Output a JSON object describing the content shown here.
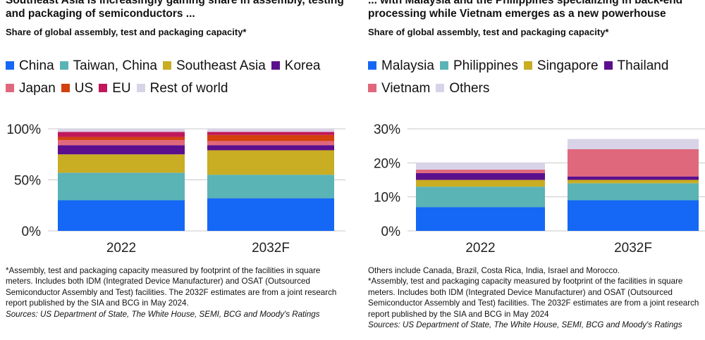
{
  "panels": [
    {
      "title_lines": [
        "Southeast Asia is increasingly gaining share in assembly, testing",
        "and packaging of semiconductors ..."
      ],
      "subtitle": "Share of global assembly, test and packaging capacity*",
      "notes": [
        "*Assembly, test and packaging capacity measured by footprint of the facilities in square meters. Includes both IDM (Integrated Device Manufacturer) and OSAT (Outsourced Semiconductor Assembly and Test) facilities. The 2032F estimates are from a joint research report published by the SIA and BCG in May 2024."
      ],
      "sources": "Sources: US Department of State, The White House, SEMI, BCG and Moody's Ratings"
    },
    {
      "title_lines": [
        "... with Malaysia and the Philippines specializing in back-end",
        "processing while Vietnam emerges as a new powerhouse"
      ],
      "subtitle": "Share of global assembly, test and packaging capacity*",
      "notes": [
        "Others include Canada, Brazil, Costa Rica, India, Israel and Morocco.",
        "*Assembly, test and packaging capacity measured by footprint of the facilities in square meters. Includes both IDM (Integrated Device Manufacturer) and OSAT (Outsourced Semiconductor Assembly and Test) facilities. The 2032F estimates are from a joint research report published by the SIA and BCG in May 2024"
      ],
      "sources": "Sources: US Department of State, The White House, SEMI, BCG and Moody's Ratings"
    }
  ],
  "chart_data": [
    {
      "type": "bar",
      "stacked": true,
      "categories": [
        "2022",
        "2032F"
      ],
      "yticks": [
        "0%",
        "50%",
        "100%"
      ],
      "ylim": [
        0,
        100
      ],
      "grid": true,
      "legend_position": "top",
      "series": [
        {
          "name": "China",
          "color": "#1468f5",
          "values": [
            30,
            32
          ]
        },
        {
          "name": "Taiwan, China",
          "color": "#5ab3b5",
          "values": [
            27,
            23
          ]
        },
        {
          "name": "Southeast Asia",
          "color": "#c9ad23",
          "values": [
            18,
            24
          ]
        },
        {
          "name": "Korea",
          "color": "#5c0f8c",
          "values": [
            9,
            5
          ]
        },
        {
          "name": "Japan",
          "color": "#e0687c",
          "values": [
            5,
            4
          ]
        },
        {
          "name": "US",
          "color": "#d2410e",
          "values": [
            3,
            6
          ]
        },
        {
          "name": "EU",
          "color": "#c0185a",
          "values": [
            5,
            3
          ]
        },
        {
          "name": "Rest of world",
          "color": "#d9d3e8",
          "values": [
            3,
            3
          ]
        }
      ]
    },
    {
      "type": "bar",
      "stacked": true,
      "categories": [
        "2022",
        "2032F"
      ],
      "yticks": [
        "0%",
        "10%",
        "20%",
        "30%"
      ],
      "ylim": [
        0,
        30
      ],
      "grid": true,
      "legend_position": "top",
      "series": [
        {
          "name": "Malaysia",
          "color": "#1468f5",
          "values": [
            7,
            9
          ]
        },
        {
          "name": "Philippines",
          "color": "#5ab3b5",
          "values": [
            6,
            5
          ]
        },
        {
          "name": "Singapore",
          "color": "#c9ad23",
          "values": [
            2,
            1
          ]
        },
        {
          "name": "Thailand",
          "color": "#5c0f8c",
          "values": [
            2,
            1
          ]
        },
        {
          "name": "Vietnam",
          "color": "#e0687c",
          "values": [
            1,
            8
          ]
        },
        {
          "name": "Others",
          "color": "#d9d3e8",
          "values": [
            2,
            3
          ]
        }
      ]
    }
  ]
}
